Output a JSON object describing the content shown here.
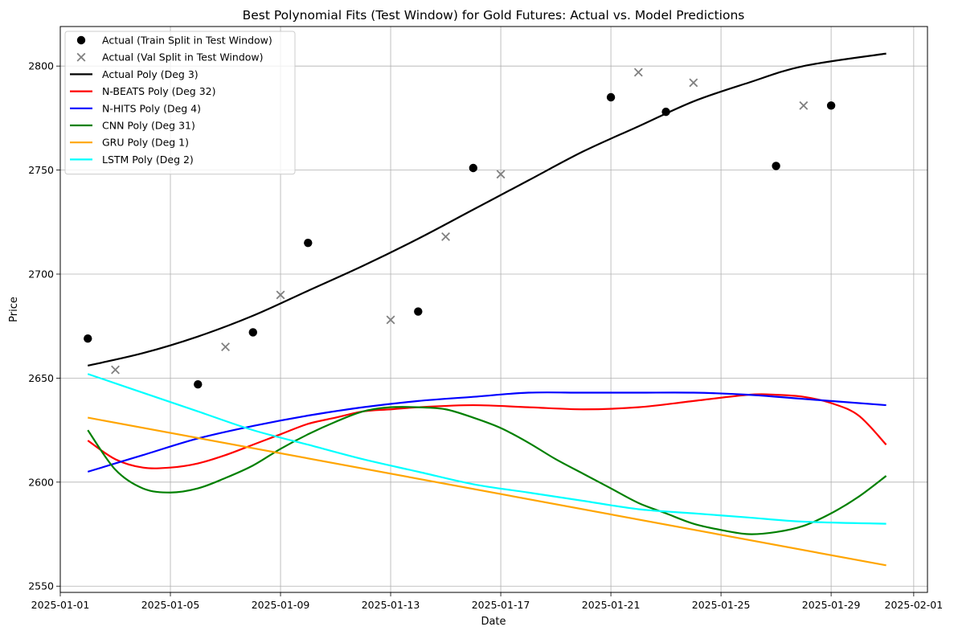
{
  "chart_data": {
    "type": "line",
    "title": "Best Polynomial Fits (Test Window) for Gold Futures: Actual vs. Model Predictions",
    "xlabel": "Date",
    "ylabel": "Price",
    "xlim": [
      "2025-01-01T00:00",
      "2025-02-01T12:00"
    ],
    "ylim": [
      2547,
      2819
    ],
    "grid": true,
    "legend_position": "top-left",
    "x_ticks": [
      "2025-01-01",
      "2025-01-05",
      "2025-01-09",
      "2025-01-13",
      "2025-01-17",
      "2025-01-21",
      "2025-01-25",
      "2025-01-29",
      "2025-02-01"
    ],
    "y_ticks": [
      2550,
      2600,
      2650,
      2700,
      2750,
      2800
    ],
    "scatter_series": [
      {
        "name": "Actual (Train Split in Test Window)",
        "marker": "circle",
        "color": "#000000",
        "points": [
          {
            "x": "2025-01-02",
            "y": 2669
          },
          {
            "x": "2025-01-06",
            "y": 2647
          },
          {
            "x": "2025-01-08",
            "y": 2672
          },
          {
            "x": "2025-01-10",
            "y": 2715
          },
          {
            "x": "2025-01-14",
            "y": 2682
          },
          {
            "x": "2025-01-16",
            "y": 2751
          },
          {
            "x": "2025-01-21",
            "y": 2785
          },
          {
            "x": "2025-01-23",
            "y": 2778
          },
          {
            "x": "2025-01-27",
            "y": 2752
          },
          {
            "x": "2025-01-29",
            "y": 2781
          }
        ]
      },
      {
        "name": "Actual (Val Split in Test Window)",
        "marker": "x",
        "color": "#808080",
        "points": [
          {
            "x": "2025-01-03",
            "y": 2654
          },
          {
            "x": "2025-01-07",
            "y": 2665
          },
          {
            "x": "2025-01-09",
            "y": 2690
          },
          {
            "x": "2025-01-13",
            "y": 2678
          },
          {
            "x": "2025-01-15",
            "y": 2718
          },
          {
            "x": "2025-01-17",
            "y": 2748
          },
          {
            "x": "2025-01-22",
            "y": 2797
          },
          {
            "x": "2025-01-24",
            "y": 2792
          },
          {
            "x": "2025-01-28",
            "y": 2781
          }
        ]
      }
    ],
    "line_series": [
      {
        "name": "Actual Poly (Deg 3)",
        "color": "#000000",
        "points": [
          {
            "x": "2025-01-02",
            "y": 2656
          },
          {
            "x": "2025-01-04",
            "y": 2662
          },
          {
            "x": "2025-01-06",
            "y": 2670
          },
          {
            "x": "2025-01-08",
            "y": 2680
          },
          {
            "x": "2025-01-10",
            "y": 2692
          },
          {
            "x": "2025-01-12",
            "y": 2704
          },
          {
            "x": "2025-01-14",
            "y": 2717
          },
          {
            "x": "2025-01-16",
            "y": 2731
          },
          {
            "x": "2025-01-18",
            "y": 2745
          },
          {
            "x": "2025-01-20",
            "y": 2759
          },
          {
            "x": "2025-01-22",
            "y": 2771
          },
          {
            "x": "2025-01-24",
            "y": 2783
          },
          {
            "x": "2025-01-26",
            "y": 2792
          },
          {
            "x": "2025-01-28",
            "y": 2800
          },
          {
            "x": "2025-01-31",
            "y": 2806
          }
        ]
      },
      {
        "name": "N-BEATS Poly (Deg 32)",
        "color": "#ff0000",
        "points": [
          {
            "x": "2025-01-02",
            "y": 2620
          },
          {
            "x": "2025-01-03",
            "y": 2611
          },
          {
            "x": "2025-01-04",
            "y": 2607
          },
          {
            "x": "2025-01-05",
            "y": 2607
          },
          {
            "x": "2025-01-06",
            "y": 2609
          },
          {
            "x": "2025-01-07",
            "y": 2613
          },
          {
            "x": "2025-01-08",
            "y": 2618
          },
          {
            "x": "2025-01-09",
            "y": 2623
          },
          {
            "x": "2025-01-10",
            "y": 2628
          },
          {
            "x": "2025-01-11",
            "y": 2631
          },
          {
            "x": "2025-01-12",
            "y": 2634
          },
          {
            "x": "2025-01-13",
            "y": 2635
          },
          {
            "x": "2025-01-14",
            "y": 2636
          },
          {
            "x": "2025-01-16",
            "y": 2637
          },
          {
            "x": "2025-01-18",
            "y": 2636
          },
          {
            "x": "2025-01-20",
            "y": 2635
          },
          {
            "x": "2025-01-22",
            "y": 2636
          },
          {
            "x": "2025-01-24",
            "y": 2639
          },
          {
            "x": "2025-01-26",
            "y": 2642
          },
          {
            "x": "2025-01-27",
            "y": 2642
          },
          {
            "x": "2025-01-28",
            "y": 2641
          },
          {
            "x": "2025-01-29",
            "y": 2638
          },
          {
            "x": "2025-01-30",
            "y": 2632
          },
          {
            "x": "2025-01-31",
            "y": 2618
          }
        ]
      },
      {
        "name": "N-HITS Poly (Deg 4)",
        "color": "#0000ff",
        "points": [
          {
            "x": "2025-01-02",
            "y": 2605
          },
          {
            "x": "2025-01-04",
            "y": 2613
          },
          {
            "x": "2025-01-06",
            "y": 2621
          },
          {
            "x": "2025-01-08",
            "y": 2627
          },
          {
            "x": "2025-01-10",
            "y": 2632
          },
          {
            "x": "2025-01-12",
            "y": 2636
          },
          {
            "x": "2025-01-14",
            "y": 2639
          },
          {
            "x": "2025-01-16",
            "y": 2641
          },
          {
            "x": "2025-01-18",
            "y": 2643
          },
          {
            "x": "2025-01-20",
            "y": 2643
          },
          {
            "x": "2025-01-22",
            "y": 2643
          },
          {
            "x": "2025-01-24",
            "y": 2643
          },
          {
            "x": "2025-01-26",
            "y": 2642
          },
          {
            "x": "2025-01-28",
            "y": 2640
          },
          {
            "x": "2025-01-31",
            "y": 2637
          }
        ]
      },
      {
        "name": "CNN Poly (Deg 31)",
        "color": "#008000",
        "points": [
          {
            "x": "2025-01-02",
            "y": 2625
          },
          {
            "x": "2025-01-03",
            "y": 2606
          },
          {
            "x": "2025-01-04",
            "y": 2597
          },
          {
            "x": "2025-01-05",
            "y": 2595
          },
          {
            "x": "2025-01-06",
            "y": 2597
          },
          {
            "x": "2025-01-07",
            "y": 2602
          },
          {
            "x": "2025-01-08",
            "y": 2608
          },
          {
            "x": "2025-01-09",
            "y": 2616
          },
          {
            "x": "2025-01-10",
            "y": 2623
          },
          {
            "x": "2025-01-11",
            "y": 2629
          },
          {
            "x": "2025-01-12",
            "y": 2634
          },
          {
            "x": "2025-01-13",
            "y": 2636
          },
          {
            "x": "2025-01-14",
            "y": 2636
          },
          {
            "x": "2025-01-15",
            "y": 2635
          },
          {
            "x": "2025-01-16",
            "y": 2631
          },
          {
            "x": "2025-01-17",
            "y": 2626
          },
          {
            "x": "2025-01-18",
            "y": 2619
          },
          {
            "x": "2025-01-19",
            "y": 2611
          },
          {
            "x": "2025-01-20",
            "y": 2604
          },
          {
            "x": "2025-01-21",
            "y": 2597
          },
          {
            "x": "2025-01-22",
            "y": 2590
          },
          {
            "x": "2025-01-23",
            "y": 2585
          },
          {
            "x": "2025-01-24",
            "y": 2580
          },
          {
            "x": "2025-01-25",
            "y": 2577
          },
          {
            "x": "2025-01-26",
            "y": 2575
          },
          {
            "x": "2025-01-27",
            "y": 2576
          },
          {
            "x": "2025-01-28",
            "y": 2579
          },
          {
            "x": "2025-01-29",
            "y": 2585
          },
          {
            "x": "2025-01-30",
            "y": 2593
          },
          {
            "x": "2025-01-31",
            "y": 2603
          }
        ]
      },
      {
        "name": "GRU Poly (Deg 1)",
        "color": "#ffa500",
        "points": [
          {
            "x": "2025-01-02",
            "y": 2631
          },
          {
            "x": "2025-01-31",
            "y": 2560
          }
        ]
      },
      {
        "name": "LSTM Poly (Deg 2)",
        "color": "#00ffff",
        "points": [
          {
            "x": "2025-01-02",
            "y": 2652
          },
          {
            "x": "2025-01-04",
            "y": 2643
          },
          {
            "x": "2025-01-06",
            "y": 2634
          },
          {
            "x": "2025-01-08",
            "y": 2625
          },
          {
            "x": "2025-01-10",
            "y": 2618
          },
          {
            "x": "2025-01-12",
            "y": 2611
          },
          {
            "x": "2025-01-14",
            "y": 2605
          },
          {
            "x": "2025-01-16",
            "y": 2599
          },
          {
            "x": "2025-01-18",
            "y": 2595
          },
          {
            "x": "2025-01-20",
            "y": 2591
          },
          {
            "x": "2025-01-22",
            "y": 2587
          },
          {
            "x": "2025-01-24",
            "y": 2585
          },
          {
            "x": "2025-01-26",
            "y": 2583
          },
          {
            "x": "2025-01-28",
            "y": 2581
          },
          {
            "x": "2025-01-31",
            "y": 2580
          }
        ]
      }
    ]
  }
}
